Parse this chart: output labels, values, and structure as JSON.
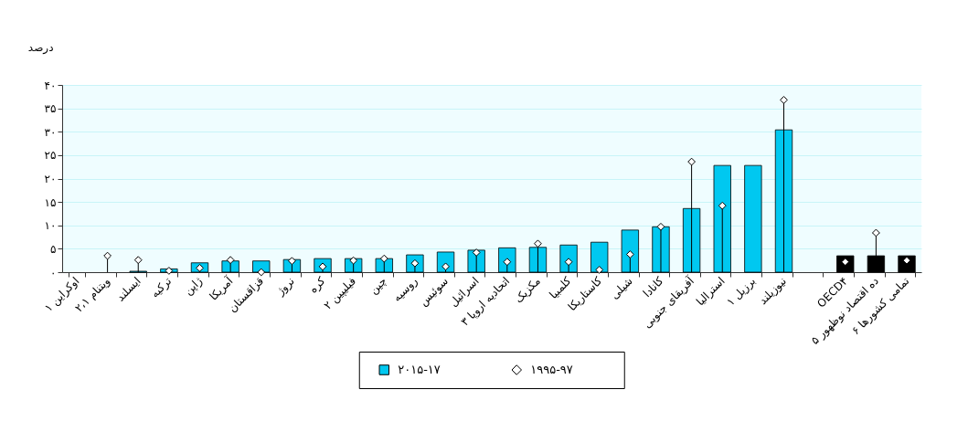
{
  "chart_data": {
    "type": "bar",
    "ylabel": "درصد",
    "categories": [
      "اوکراین ۱",
      "ویتنام ۲،۱",
      "ایسلند",
      "ترکیه",
      "ژاپن",
      "آمریکا",
      "قزاقستان",
      "نروژ",
      "کره",
      "فیلیپین ۲",
      "چین",
      "روسیه",
      "سوئیس",
      "اسرائیل",
      "اتحادیه اروپا ۳",
      "مکزیک",
      "کلمبیا",
      "کاستاریکا",
      "شیلی",
      "کانادا",
      "آفریقای جنوبی",
      "استرالیا",
      "برزیل ۱",
      "نیوزیلند",
      null,
      "OECD۴",
      "ده اقتصاد نوظهور ۵",
      "تمامی کشورها ۶"
    ],
    "series": [
      {
        "name": "۲۰۱۵-۱۷",
        "type": "bar",
        "color": "#00c8f0",
        "colors": [
          "#00c8f0",
          "#00c8f0",
          "#00c8f0",
          "#00c8f0",
          "#00c8f0",
          "#00c8f0",
          "#00c8f0",
          "#00c8f0",
          "#00c8f0",
          "#00c8f0",
          "#00c8f0",
          "#00c8f0",
          "#00c8f0",
          "#00c8f0",
          "#00c8f0",
          "#00c8f0",
          "#00c8f0",
          "#00c8f0",
          "#00c8f0",
          "#00c8f0",
          "#00c8f0",
          "#00c8f0",
          "#00c8f0",
          "#00c8f0",
          "#000000",
          "#000000",
          "#000000",
          "#000000"
        ],
        "values": [
          null,
          null,
          0.2,
          0.7,
          2.0,
          2.4,
          2.4,
          2.7,
          2.9,
          2.9,
          2.9,
          3.7,
          4.3,
          4.7,
          5.2,
          5.3,
          5.8,
          6.4,
          9.0,
          9.7,
          13.6,
          22.8,
          22.8,
          30.4,
          null,
          3.5,
          3.5,
          3.5
        ]
      },
      {
        "name": "۱۹۹۵-۹۷",
        "type": "lollipop",
        "color": "#ffffff",
        "marker": "diamond",
        "values": [
          null,
          3.5,
          2.6,
          0.3,
          0.9,
          2.6,
          0,
          2.4,
          1.2,
          2.5,
          2.9,
          1.9,
          1.2,
          4.2,
          2.2,
          6.1,
          2.2,
          0.5,
          3.8,
          9.7,
          23.6,
          14.2,
          null,
          36.8,
          null,
          2.2,
          8.4,
          2.5
        ]
      }
    ],
    "ylim": [
      0,
      40
    ],
    "yticks": [
      {
        "value": 0,
        "label": "۰"
      },
      {
        "value": 5,
        "label": "۵"
      },
      {
        "value": 10,
        "label": "۱۰"
      },
      {
        "value": 15,
        "label": "۱۵"
      },
      {
        "value": 20,
        "label": "۲۰"
      },
      {
        "value": 25,
        "label": "۲۵"
      },
      {
        "value": 30,
        "label": "۳۰"
      },
      {
        "value": 35,
        "label": "۳۵"
      },
      {
        "value": 40,
        "label": "۴۰"
      }
    ],
    "grid": "y",
    "legend": "bottom"
  }
}
